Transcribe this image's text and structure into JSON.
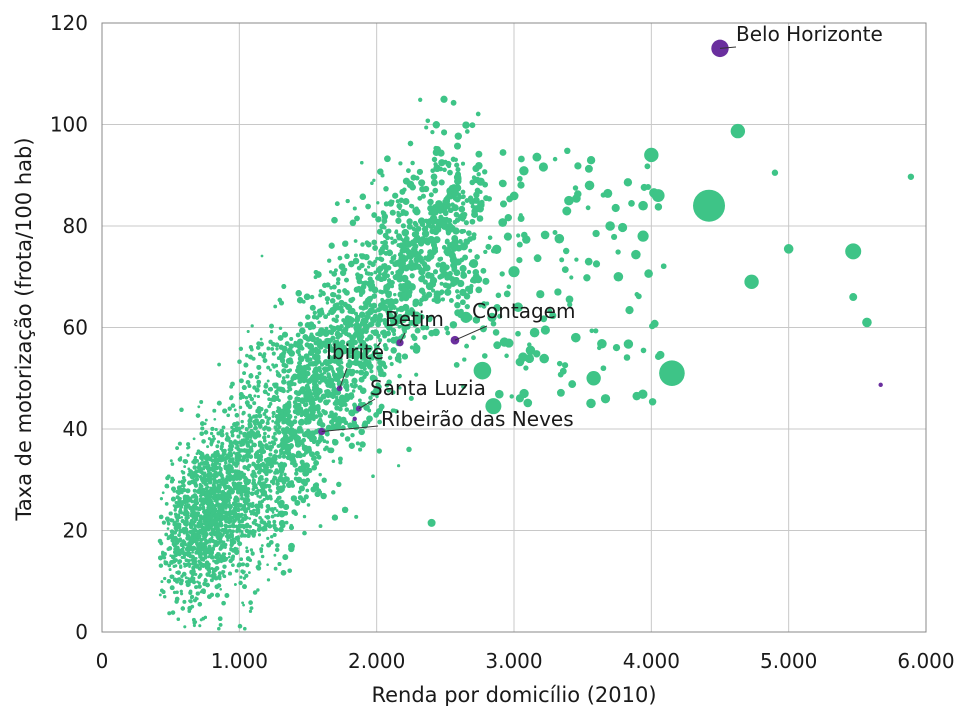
{
  "chart_data": {
    "type": "scatter",
    "xlabel": "Renda por domicílio (2010)",
    "ylabel": "Taxa de motorização (frota/100 hab)",
    "xlim": [
      0,
      6000
    ],
    "ylim": [
      0,
      120
    ],
    "x_ticks": [
      0,
      1000,
      2000,
      3000,
      4000,
      5000,
      6000
    ],
    "x_tick_labels": [
      "0",
      "1.000",
      "2.000",
      "3.000",
      "4.000",
      "5.000",
      "6.000"
    ],
    "y_ticks": [
      0,
      20,
      40,
      60,
      80,
      100,
      120
    ],
    "y_tick_labels": [
      "0",
      "20",
      "40",
      "60",
      "80",
      "100",
      "120"
    ],
    "grid": true,
    "colors": {
      "municipios": "#3ec487",
      "rmbh": "#6a2f9e",
      "grid": "#c8c8c8",
      "axis": "#888888"
    },
    "cloud_summary": "approx. 5,500 municipalities; dense band rising from ~25 at 900 to ~80 at 2,500, then flattening",
    "highlighted": [
      {
        "name": "Belo Horizonte",
        "x": 4500,
        "y": 115,
        "size": 6
      },
      {
        "name": "Contagem",
        "x": 2570,
        "y": 57.5,
        "size": 3
      },
      {
        "name": "Betim",
        "x": 2170,
        "y": 57,
        "size": 2.5
      },
      {
        "name": "Ibirité",
        "x": 1730,
        "y": 48,
        "size": 2
      },
      {
        "name": "Santa Luzia",
        "x": 1870,
        "y": 44,
        "size": 2
      },
      {
        "name": "Ribeirão das Neves",
        "x": 1600,
        "y": 39.5,
        "size": 2.5
      },
      {
        "name": "",
        "x": 1840,
        "y": 42,
        "size": 1.5
      },
      {
        "name": "",
        "x": 5670,
        "y": 48.7,
        "size": 1.5
      }
    ],
    "large_points": [
      {
        "x": 4420,
        "y": 84,
        "size": 10
      },
      {
        "x": 4150,
        "y": 51,
        "size": 8
      },
      {
        "x": 5470,
        "y": 75,
        "size": 5
      },
      {
        "x": 4630,
        "y": 98.7,
        "size": 4.5
      },
      {
        "x": 4000,
        "y": 94,
        "size": 4.5
      },
      {
        "x": 4730,
        "y": 69,
        "size": 4.5
      },
      {
        "x": 2770,
        "y": 51.5,
        "size": 5.5
      },
      {
        "x": 3580,
        "y": 50,
        "size": 4.5
      },
      {
        "x": 2850,
        "y": 44.5,
        "size": 5
      },
      {
        "x": 4050,
        "y": 86,
        "size": 4
      },
      {
        "x": 3940,
        "y": 78,
        "size": 3.5
      },
      {
        "x": 3760,
        "y": 70,
        "size": 3
      },
      {
        "x": 5000,
        "y": 75.5,
        "size": 3
      },
      {
        "x": 5570,
        "y": 61,
        "size": 3
      },
      {
        "x": 5470,
        "y": 66,
        "size": 2.5
      },
      {
        "x": 3940,
        "y": 84,
        "size": 3
      },
      {
        "x": 3640,
        "y": 56.8,
        "size": 3
      },
      {
        "x": 3450,
        "y": 58,
        "size": 3
      },
      {
        "x": 3120,
        "y": 55.5,
        "size": 3
      },
      {
        "x": 3000,
        "y": 71,
        "size": 3.5
      },
      {
        "x": 3330,
        "y": 77.5,
        "size": 3
      },
      {
        "x": 3400,
        "y": 85,
        "size": 3
      },
      {
        "x": 2400,
        "y": 21.5,
        "size": 2.5
      },
      {
        "x": 5890,
        "y": 89.7,
        "size": 2
      },
      {
        "x": 4900,
        "y": 90.5,
        "size": 2
      },
      {
        "x": 3150,
        "y": 59,
        "size": 3
      },
      {
        "x": 3030,
        "y": 64,
        "size": 3
      },
      {
        "x": 2650,
        "y": 62,
        "size": 3.5
      },
      {
        "x": 3550,
        "y": 88,
        "size": 3
      },
      {
        "x": 3700,
        "y": 80,
        "size": 3
      }
    ]
  }
}
